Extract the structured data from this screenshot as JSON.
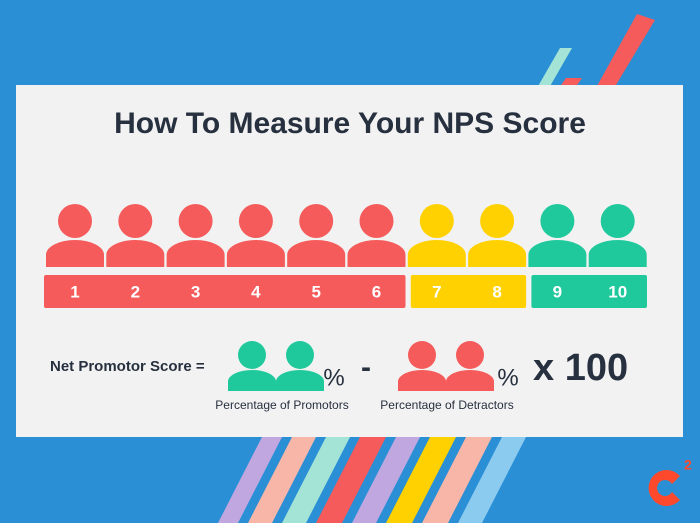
{
  "title": "How To Measure Your NPS Score",
  "scale": {
    "groups": [
      {
        "color": "#f65b5b",
        "numbers": [
          1,
          2,
          3,
          4,
          5,
          6
        ]
      },
      {
        "color": "#ffd100",
        "numbers": [
          7,
          8
        ]
      },
      {
        "color": "#1fc99b",
        "numbers": [
          9,
          10
        ]
      }
    ]
  },
  "formula": {
    "label": "Net Promotor Score =",
    "promoters": {
      "color": "#1fc99b",
      "symbol": "%",
      "caption": "Percentage of Promotors"
    },
    "minus": "-",
    "detractors": {
      "color": "#f65b5b",
      "symbol": "%",
      "caption": "Percentage of Detractors"
    },
    "multiplier": "x 100"
  },
  "logo": {
    "superscript": "2"
  }
}
